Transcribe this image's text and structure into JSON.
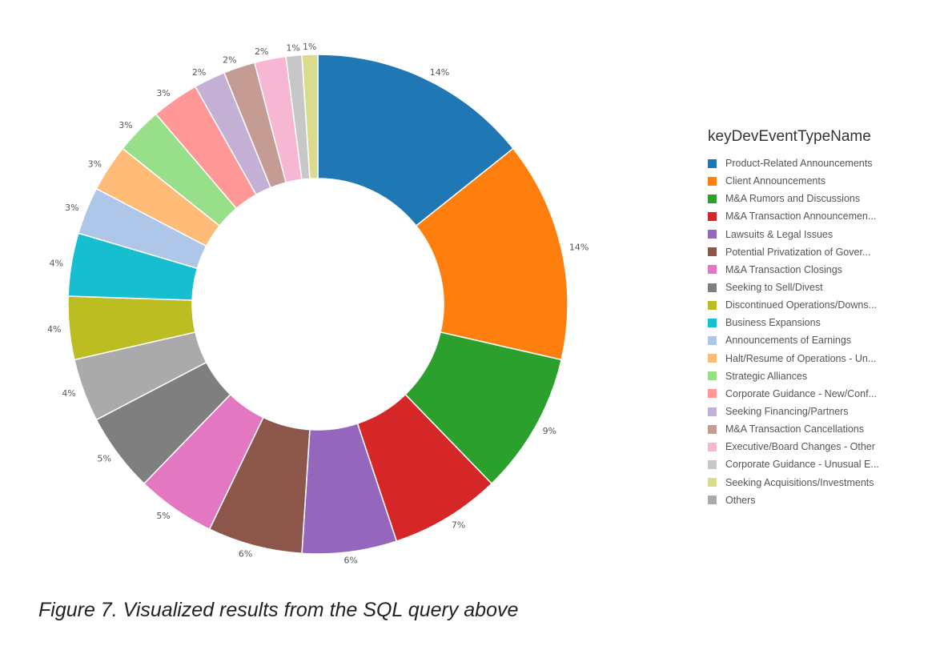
{
  "chart_data": {
    "type": "pie",
    "donut": true,
    "legend": {
      "title": "keyDevEventTypeName",
      "placement": "right"
    },
    "slices": [
      {
        "name": "Product-Related Announcements",
        "value": 14,
        "label": "14%",
        "color": "#1f77b4"
      },
      {
        "name": "Client Announcements",
        "value": 14,
        "label": "14%",
        "color": "#ff7f0e"
      },
      {
        "name": "M&A Rumors and Discussions",
        "value": 9,
        "label": "9%",
        "color": "#2ca02c"
      },
      {
        "name": "M&A Transaction Announcemen...",
        "value": 7,
        "label": "7%",
        "color": "#d62728"
      },
      {
        "name": "Lawsuits & Legal Issues",
        "value": 6,
        "label": "6%",
        "color": "#9467bd"
      },
      {
        "name": "Potential Privatization of Gover...",
        "value": 6,
        "label": "6%",
        "color": "#8c564b"
      },
      {
        "name": "M&A Transaction Closings",
        "value": 5,
        "label": "5%",
        "color": "#e377c2"
      },
      {
        "name": "Seeking to Sell/Divest",
        "value": 5,
        "label": "5%",
        "color": "#7f7f7f"
      },
      {
        "name": "Discontinued Operations/Downs...",
        "value": 4,
        "label": "4%",
        "color": "#bcbd22"
      },
      {
        "name": "Business Expansions",
        "value": 4,
        "label": "4%",
        "color": "#17becf"
      },
      {
        "name": "Announcements of Earnings",
        "value": 3,
        "label": "3%",
        "color": "#aec7e8"
      },
      {
        "name": "Halt/Resume of Operations - Un...",
        "value": 3,
        "label": "3%",
        "color": "#ffbb78"
      },
      {
        "name": "Strategic Alliances",
        "value": 3,
        "label": "3%",
        "color": "#98df8a"
      },
      {
        "name": "Corporate Guidance - New/Conf...",
        "value": 3,
        "label": "3%",
        "color": "#ff9896"
      },
      {
        "name": "Seeking Financing/Partners",
        "value": 2,
        "label": "2%",
        "color": "#c5b0d5"
      },
      {
        "name": "M&A Transaction Cancellations",
        "value": 2,
        "label": "2%",
        "color": "#c49c94"
      },
      {
        "name": "Executive/Board Changes - Other",
        "value": 2,
        "label": "2%",
        "color": "#f7b6d2"
      },
      {
        "name": "Corporate Guidance - Unusual E...",
        "value": 1,
        "label": "1%",
        "color": "#c7c7c7"
      },
      {
        "name": "Seeking Acquisitions/Investments",
        "value": 1,
        "label": "1%",
        "color": "#dbdb8d"
      },
      {
        "name": "Others",
        "value": 4,
        "label": "4%",
        "color": "#aaaaaa"
      }
    ],
    "slice_order": [
      0,
      1,
      2,
      3,
      4,
      5,
      6,
      7,
      19,
      8,
      9,
      10,
      11,
      12,
      13,
      14,
      15,
      16,
      17,
      18
    ]
  },
  "caption": "Figure 7. Visualized results from the SQL query above"
}
